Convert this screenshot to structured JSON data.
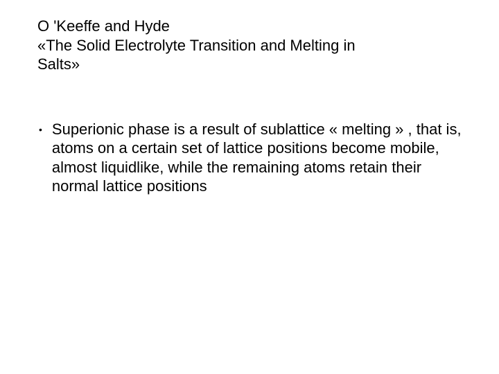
{
  "title": {
    "line1": "O 'Keeffe and Hyde",
    "line2": "«The Solid Electrolyte Transition and Melting in",
    "line3": "Salts»"
  },
  "bullet": {
    "marker": "•",
    "text": "Superionic phase is a result of  sublattice « melting » , that is, atoms on a certain set of lattice positions become mobile, almost liquidlike, while the remaining atoms retain their normal lattice positions"
  },
  "colors": {
    "background": "#ffffff",
    "text": "#000000"
  },
  "typography": {
    "font_family": "Arial",
    "title_fontsize": 22,
    "body_fontsize": 22,
    "line_height": 1.25
  }
}
